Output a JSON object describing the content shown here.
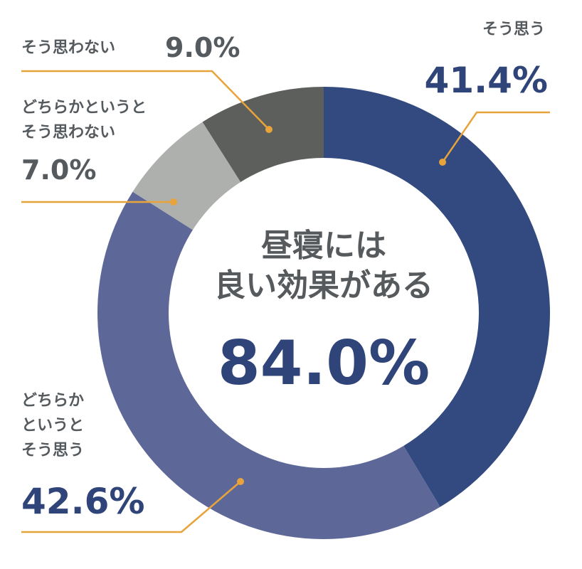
{
  "chart_data": {
    "type": "pie",
    "center": {
      "line1": "昼寝には",
      "line2": "良い効果がある",
      "value": "84.0%"
    },
    "slices": [
      {
        "label_lines": [
          "そう思う"
        ],
        "value_text": "41.4%",
        "value": 41.4,
        "color": "#334a80"
      },
      {
        "label_lines": [
          "どちらか",
          "というと",
          "そう思う"
        ],
        "value_text": "42.6%",
        "value": 42.6,
        "color": "#5d6898"
      },
      {
        "label_lines": [
          "どちらかというと",
          "そう思わない"
        ],
        "value_text": "7.0%",
        "value": 7.0,
        "color": "#aeb0ad"
      },
      {
        "label_lines": [
          "そう思わない"
        ],
        "value_text": "9.0%",
        "value": 9.0,
        "color": "#5d5f5c"
      }
    ],
    "leader_color": "#e8a33a"
  }
}
